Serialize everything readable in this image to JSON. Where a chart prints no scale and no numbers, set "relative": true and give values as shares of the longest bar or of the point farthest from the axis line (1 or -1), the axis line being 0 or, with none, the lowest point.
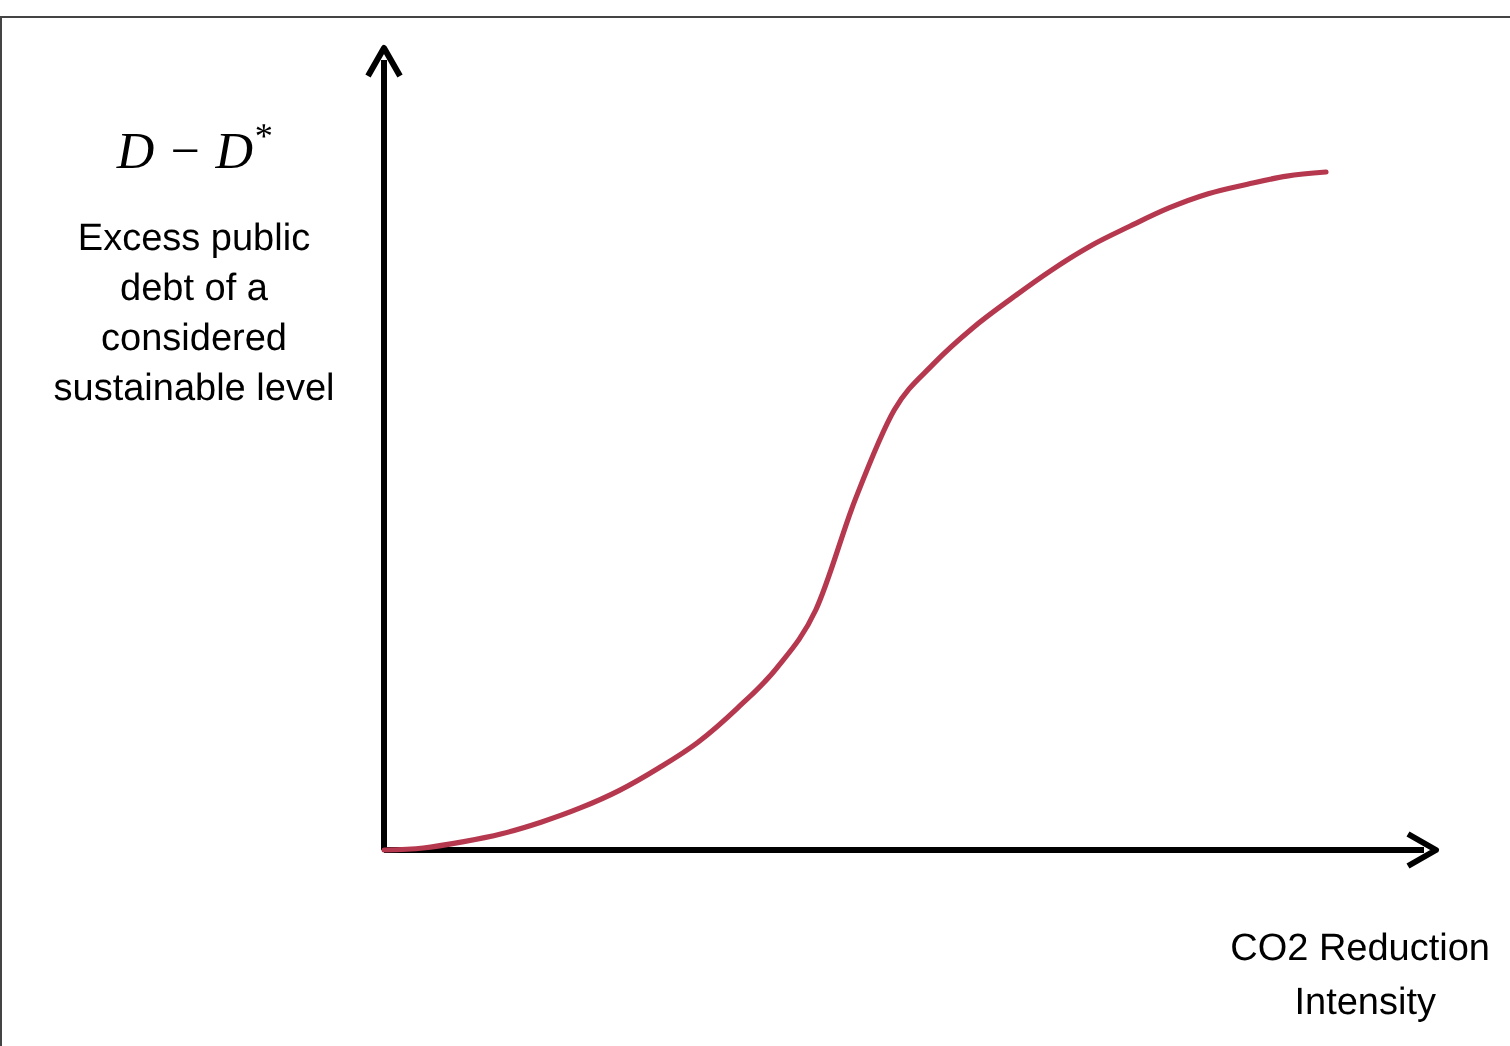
{
  "chart_data": {
    "type": "line",
    "relative": true,
    "xlabel": "CO2 Reduction Intensity",
    "ylabel": "D − D$^{*}$",
    "annotations": [
      "Excess public debt of a considered sustainable level"
    ],
    "categories": [
      null,
      null,
      null,
      null,
      null,
      null,
      null,
      null,
      null,
      null,
      null,
      null,
      null,
      null,
      null,
      null,
      null,
      null,
      null,
      null,
      null,
      null,
      null,
      null,
      null
    ],
    "series": [
      {
        "color": "#b5384f",
        "values": [
          0,
          0.003,
          0.012,
          0.024,
          0.041,
          0.062,
          0.088,
          0.121,
          0.159,
          0.209,
          0.268,
          0.354,
          0.516,
          0.649,
          0.717,
          0.77,
          0.814,
          0.855,
          0.891,
          0.92,
          0.947,
          0.968,
          0.982,
          0.994,
          1
        ]
      }
    ],
    "marker": "none",
    "line_style": "solid"
  }
}
